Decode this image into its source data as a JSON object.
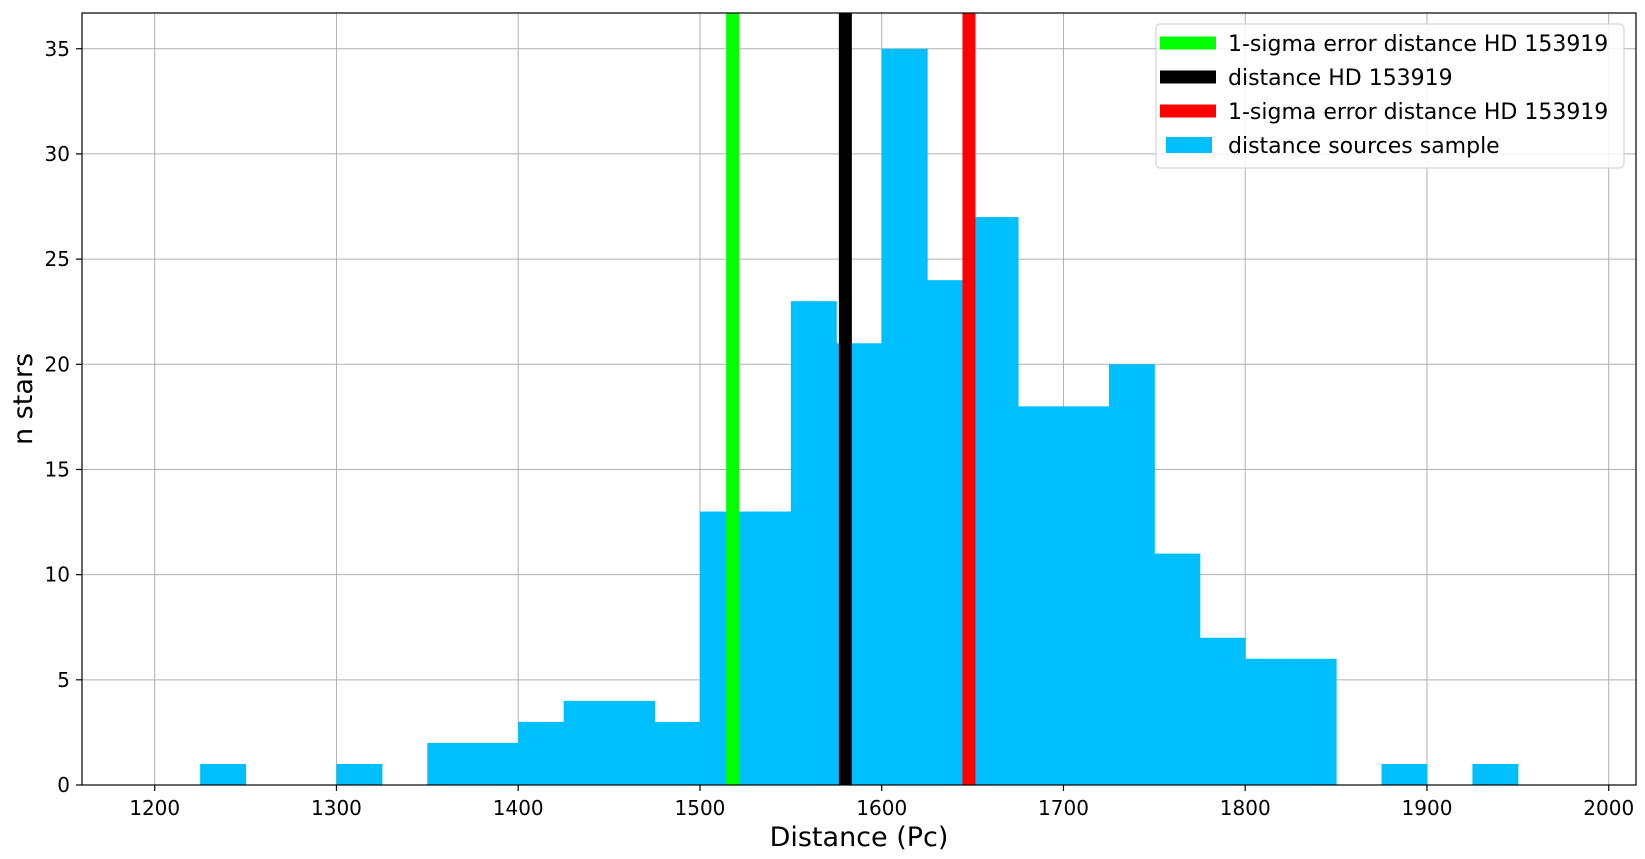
{
  "chart_data": {
    "type": "bar",
    "title": "",
    "xlabel": "Distance (Pc)",
    "ylabel": "n stars",
    "xlim": [
      1160,
      2015
    ],
    "ylim": [
      0,
      36.7
    ],
    "grid": true,
    "legend_position": "top-right",
    "bin_width": 25,
    "xticks": [
      1200,
      1300,
      1400,
      1500,
      1600,
      1700,
      1800,
      1900,
      2000
    ],
    "yticks": [
      0,
      5,
      10,
      15,
      20,
      25,
      30,
      35
    ],
    "histogram": {
      "name": "distance sources sample",
      "color": "#00bfff",
      "bin_starts": [
        1225,
        1250,
        1275,
        1300,
        1325,
        1350,
        1375,
        1400,
        1425,
        1450,
        1475,
        1500,
        1525,
        1550,
        1575,
        1600,
        1625,
        1650,
        1675,
        1700,
        1725,
        1750,
        1775,
        1800,
        1825,
        1850,
        1875,
        1900,
        1925
      ],
      "counts": [
        1,
        0,
        0,
        1,
        0,
        2,
        2,
        3,
        4,
        4,
        3,
        13,
        13,
        23,
        21,
        35,
        24,
        27,
        18,
        18,
        20,
        11,
        7,
        6,
        6,
        0,
        1,
        0,
        1
      ]
    },
    "vlines": [
      {
        "name": "1-sigma error distance HD 153919",
        "x": 1518,
        "color": "#00ff00"
      },
      {
        "name": "distance HD 153919",
        "x": 1580,
        "color": "#000000"
      },
      {
        "name": "1-sigma error distance HD 153919",
        "x": 1648,
        "color": "#ff0000"
      }
    ],
    "legend": [
      {
        "label": "1-sigma error distance HD 153919",
        "color": "#00ff00",
        "kind": "line"
      },
      {
        "label": "distance HD 153919",
        "color": "#000000",
        "kind": "line"
      },
      {
        "label": "1-sigma error distance HD 153919",
        "color": "#ff0000",
        "kind": "line"
      },
      {
        "label": "distance sources sample",
        "color": "#00bfff",
        "kind": "patch"
      }
    ]
  }
}
